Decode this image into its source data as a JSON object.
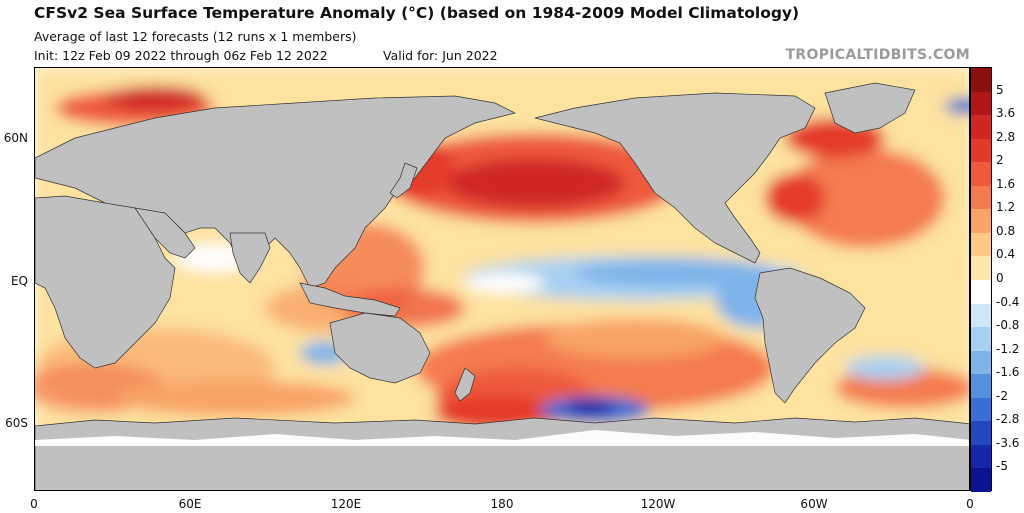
{
  "header": {
    "title": "CFSv2 Sea Surface Temperature Anomaly (°C) (based on 1984-2009 Model Climatology)",
    "subtitle": "Average of last 12 forecasts (12 runs x 1 members)",
    "init": "Init: 12z Feb 09 2022 through 06z Feb 12 2022",
    "valid": "Valid for: Jun 2022",
    "credit": "TROPICALTIDBITS.COM"
  },
  "axes": {
    "lat_labels": [
      "60N",
      "EQ",
      "60S"
    ],
    "lon_labels": [
      "0",
      "60E",
      "120E",
      "180",
      "120W",
      "60W",
      "0"
    ]
  },
  "colorbar": {
    "labels": [
      "5",
      "3.6",
      "2.8",
      "2",
      "1.6",
      "1.2",
      "0.8",
      "0.4",
      "0",
      "-0.4",
      "-0.8",
      "-1.2",
      "-1.6",
      "-2",
      "-2.8",
      "-3.6",
      "-5"
    ],
    "colors": [
      "#8c1010",
      "#b01818",
      "#cf2626",
      "#e43a2c",
      "#ee5a3c",
      "#f47b50",
      "#f8a466",
      "#fbc985",
      "#fde7a8",
      "#ffffff",
      "#cfe6f8",
      "#a8d0f2",
      "#7fb4ea",
      "#5590dc",
      "#3a6ed2",
      "#2448c0",
      "#1428a8",
      "#0a1490"
    ]
  },
  "colors": {
    "land": "#c0c0c0",
    "border": "#333333"
  }
}
